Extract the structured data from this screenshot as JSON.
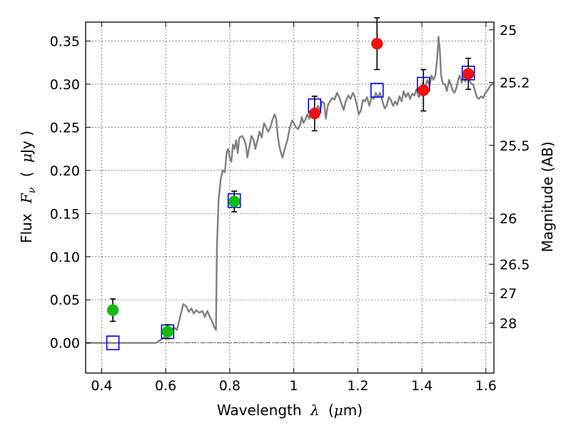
{
  "chart_data": {
    "type": "scatter",
    "title": "",
    "xlabel": {
      "prefix": "Wavelength",
      "symbol": "λ",
      "unit_open": "(",
      "unit_mu": "μ",
      "unit_rest": "m)"
    },
    "ylabel": {
      "prefix": "Flux",
      "symbol": "F",
      "subscript": "ν",
      "unit_open": "(",
      "unit_mu": "μ",
      "unit_rest": "Jy )"
    },
    "y2label": "Magnitude (AB)",
    "xlim": [
      0.35,
      1.625
    ],
    "ylim": [
      -0.035,
      0.372
    ],
    "x_ticks": [
      0.4,
      0.6,
      0.8,
      1.0,
      1.2,
      1.4,
      1.6
    ],
    "x_tick_labels": [
      "0.4",
      "0.6",
      "0.8",
      "1",
      "1.2",
      "1.4",
      "1.6"
    ],
    "y_ticks": [
      0.0,
      0.05,
      0.1,
      0.15,
      0.2,
      0.25,
      0.3,
      0.35
    ],
    "y_tick_labels": [
      "0.00",
      "0.05",
      "0.10",
      "0.15",
      "0.20",
      "0.25",
      "0.30",
      "0.35"
    ],
    "mag_ticks": [
      {
        "label": "25",
        "mag": 25.0
      },
      {
        "label": "25.2",
        "mag": 25.2
      },
      {
        "label": "25.5",
        "mag": 25.5
      },
      {
        "label": "26",
        "mag": 26.0
      },
      {
        "label": "26.5",
        "mag": 26.5
      },
      {
        "label": "27",
        "mag": 27.0
      },
      {
        "label": "28",
        "mag": 28.0
      }
    ],
    "grid": true,
    "zero_line": true,
    "colors": {
      "model": "#808080",
      "green": "#11bb11",
      "red": "#ee1111",
      "square": "#0000ee",
      "errorbar": "#000000",
      "grid": "#000000"
    },
    "series": [
      {
        "type": "line",
        "points": [
          [
            0.35,
            0.0
          ],
          [
            0.57,
            0.0
          ],
          [
            0.59,
            0.005
          ],
          [
            0.61,
            0.012
          ],
          [
            0.625,
            0.018
          ],
          [
            0.635,
            0.015
          ],
          [
            0.645,
            0.03
          ],
          [
            0.655,
            0.045
          ],
          [
            0.665,
            0.042
          ],
          [
            0.672,
            0.036
          ],
          [
            0.68,
            0.04
          ],
          [
            0.688,
            0.034
          ],
          [
            0.695,
            0.038
          ],
          [
            0.705,
            0.035
          ],
          [
            0.715,
            0.037
          ],
          [
            0.722,
            0.03
          ],
          [
            0.73,
            0.037
          ],
          [
            0.738,
            0.03
          ],
          [
            0.745,
            0.025
          ],
          [
            0.752,
            0.018
          ],
          [
            0.757,
            0.015
          ],
          [
            0.76,
            0.11
          ],
          [
            0.765,
            0.165
          ],
          [
            0.772,
            0.19
          ],
          [
            0.778,
            0.2
          ],
          [
            0.785,
            0.198
          ],
          [
            0.79,
            0.22
          ],
          [
            0.795,
            0.225
          ],
          [
            0.8,
            0.215
          ],
          [
            0.805,
            0.21
          ],
          [
            0.81,
            0.23
          ],
          [
            0.815,
            0.225
          ],
          [
            0.82,
            0.235
          ],
          [
            0.825,
            0.22
          ],
          [
            0.83,
            0.238
          ],
          [
            0.838,
            0.24
          ],
          [
            0.845,
            0.236
          ],
          [
            0.85,
            0.23
          ],
          [
            0.855,
            0.215
          ],
          [
            0.86,
            0.225
          ],
          [
            0.868,
            0.24
          ],
          [
            0.875,
            0.235
          ],
          [
            0.88,
            0.225
          ],
          [
            0.887,
            0.235
          ],
          [
            0.893,
            0.245
          ],
          [
            0.9,
            0.238
          ],
          [
            0.907,
            0.255
          ],
          [
            0.913,
            0.25
          ],
          [
            0.92,
            0.245
          ],
          [
            0.927,
            0.25
          ],
          [
            0.933,
            0.258
          ],
          [
            0.94,
            0.265
          ],
          [
            0.945,
            0.26
          ],
          [
            0.95,
            0.24
          ],
          [
            0.955,
            0.228
          ],
          [
            0.96,
            0.22
          ],
          [
            0.965,
            0.215
          ],
          [
            0.972,
            0.225
          ],
          [
            0.98,
            0.235
          ],
          [
            0.988,
            0.25
          ],
          [
            0.995,
            0.258
          ],
          [
            1.0,
            0.255
          ],
          [
            1.007,
            0.25
          ],
          [
            1.013,
            0.248
          ],
          [
            1.02,
            0.253
          ],
          [
            1.025,
            0.262
          ],
          [
            1.03,
            0.255
          ],
          [
            1.035,
            0.258
          ],
          [
            1.042,
            0.265
          ],
          [
            1.048,
            0.26
          ],
          [
            1.055,
            0.27
          ],
          [
            1.062,
            0.272
          ],
          [
            1.068,
            0.265
          ],
          [
            1.075,
            0.275
          ],
          [
            1.082,
            0.27
          ],
          [
            1.088,
            0.28
          ],
          [
            1.095,
            0.278
          ],
          [
            1.1,
            0.26
          ],
          [
            1.106,
            0.275
          ],
          [
            1.113,
            0.28
          ],
          [
            1.12,
            0.284
          ],
          [
            1.127,
            0.282
          ],
          [
            1.135,
            0.29
          ],
          [
            1.142,
            0.285
          ],
          [
            1.15,
            0.276
          ],
          [
            1.156,
            0.27
          ],
          [
            1.162,
            0.28
          ],
          [
            1.17,
            0.287
          ],
          [
            1.177,
            0.283
          ],
          [
            1.185,
            0.29
          ],
          [
            1.19,
            0.286
          ],
          [
            1.197,
            0.276
          ],
          [
            1.203,
            0.265
          ],
          [
            1.21,
            0.27
          ],
          [
            1.216,
            0.282
          ],
          [
            1.222,
            0.28
          ],
          [
            1.229,
            0.285
          ],
          [
            1.236,
            0.275
          ],
          [
            1.243,
            0.285
          ],
          [
            1.25,
            0.283
          ],
          [
            1.256,
            0.29
          ],
          [
            1.263,
            0.285
          ],
          [
            1.27,
            0.29
          ],
          [
            1.277,
            0.28
          ],
          [
            1.284,
            0.272
          ],
          [
            1.29,
            0.275
          ],
          [
            1.297,
            0.285
          ],
          [
            1.303,
            0.282
          ],
          [
            1.31,
            0.275
          ],
          [
            1.317,
            0.28
          ],
          [
            1.323,
            0.276
          ],
          [
            1.33,
            0.286
          ],
          [
            1.337,
            0.28
          ],
          [
            1.343,
            0.292
          ],
          [
            1.35,
            0.285
          ],
          [
            1.357,
            0.29
          ],
          [
            1.363,
            0.283
          ],
          [
            1.37,
            0.289
          ],
          [
            1.377,
            0.287
          ],
          [
            1.383,
            0.294
          ],
          [
            1.39,
            0.285
          ],
          [
            1.397,
            0.29
          ],
          [
            1.403,
            0.302
          ],
          [
            1.41,
            0.296
          ],
          [
            1.417,
            0.305
          ],
          [
            1.424,
            0.298
          ],
          [
            1.43,
            0.31
          ],
          [
            1.436,
            0.305
          ],
          [
            1.442,
            0.31
          ],
          [
            1.448,
            0.33
          ],
          [
            1.452,
            0.355
          ],
          [
            1.456,
            0.34
          ],
          [
            1.46,
            0.31
          ],
          [
            1.466,
            0.3
          ],
          [
            1.472,
            0.3
          ],
          [
            1.478,
            0.292
          ],
          [
            1.485,
            0.305
          ],
          [
            1.49,
            0.3
          ],
          [
            1.496,
            0.293
          ],
          [
            1.502,
            0.29
          ],
          [
            1.508,
            0.296
          ],
          [
            1.513,
            0.305
          ],
          [
            1.518,
            0.31
          ],
          [
            1.524,
            0.302
          ],
          [
            1.53,
            0.308
          ],
          [
            1.536,
            0.303
          ],
          [
            1.542,
            0.31
          ],
          [
            1.548,
            0.305
          ],
          [
            1.555,
            0.3
          ],
          [
            1.56,
            0.3
          ],
          [
            1.566,
            0.292
          ],
          [
            1.572,
            0.285
          ],
          [
            1.578,
            0.283
          ],
          [
            1.585,
            0.286
          ],
          [
            1.592,
            0.284
          ],
          [
            1.598,
            0.29
          ],
          [
            1.604,
            0.292
          ],
          [
            1.61,
            0.296
          ],
          [
            1.617,
            0.3
          ],
          [
            1.625,
            0.3
          ]
        ]
      },
      {
        "type": "squares",
        "points": [
          {
            "x": 0.435,
            "y": 0.0
          },
          {
            "x": 0.606,
            "y": 0.013
          },
          {
            "x": 0.814,
            "y": 0.165
          },
          {
            "x": 1.065,
            "y": 0.275
          },
          {
            "x": 1.26,
            "y": 0.293
          },
          {
            "x": 1.405,
            "y": 0.3
          },
          {
            "x": 1.545,
            "y": 0.313
          }
        ]
      },
      {
        "type": "points-green",
        "points": [
          {
            "x": 0.435,
            "y": 0.038,
            "err": 0.013
          },
          {
            "x": 0.606,
            "y": 0.013,
            "err": 0.008
          },
          {
            "x": 0.814,
            "y": 0.164,
            "err": 0.012
          }
        ]
      },
      {
        "type": "points-red",
        "points": [
          {
            "x": 1.065,
            "y": 0.266,
            "err": 0.02
          },
          {
            "x": 1.26,
            "y": 0.347,
            "err": 0.03
          },
          {
            "x": 1.405,
            "y": 0.293,
            "err": 0.024
          },
          {
            "x": 1.545,
            "y": 0.312,
            "err": 0.018
          }
        ]
      }
    ]
  }
}
